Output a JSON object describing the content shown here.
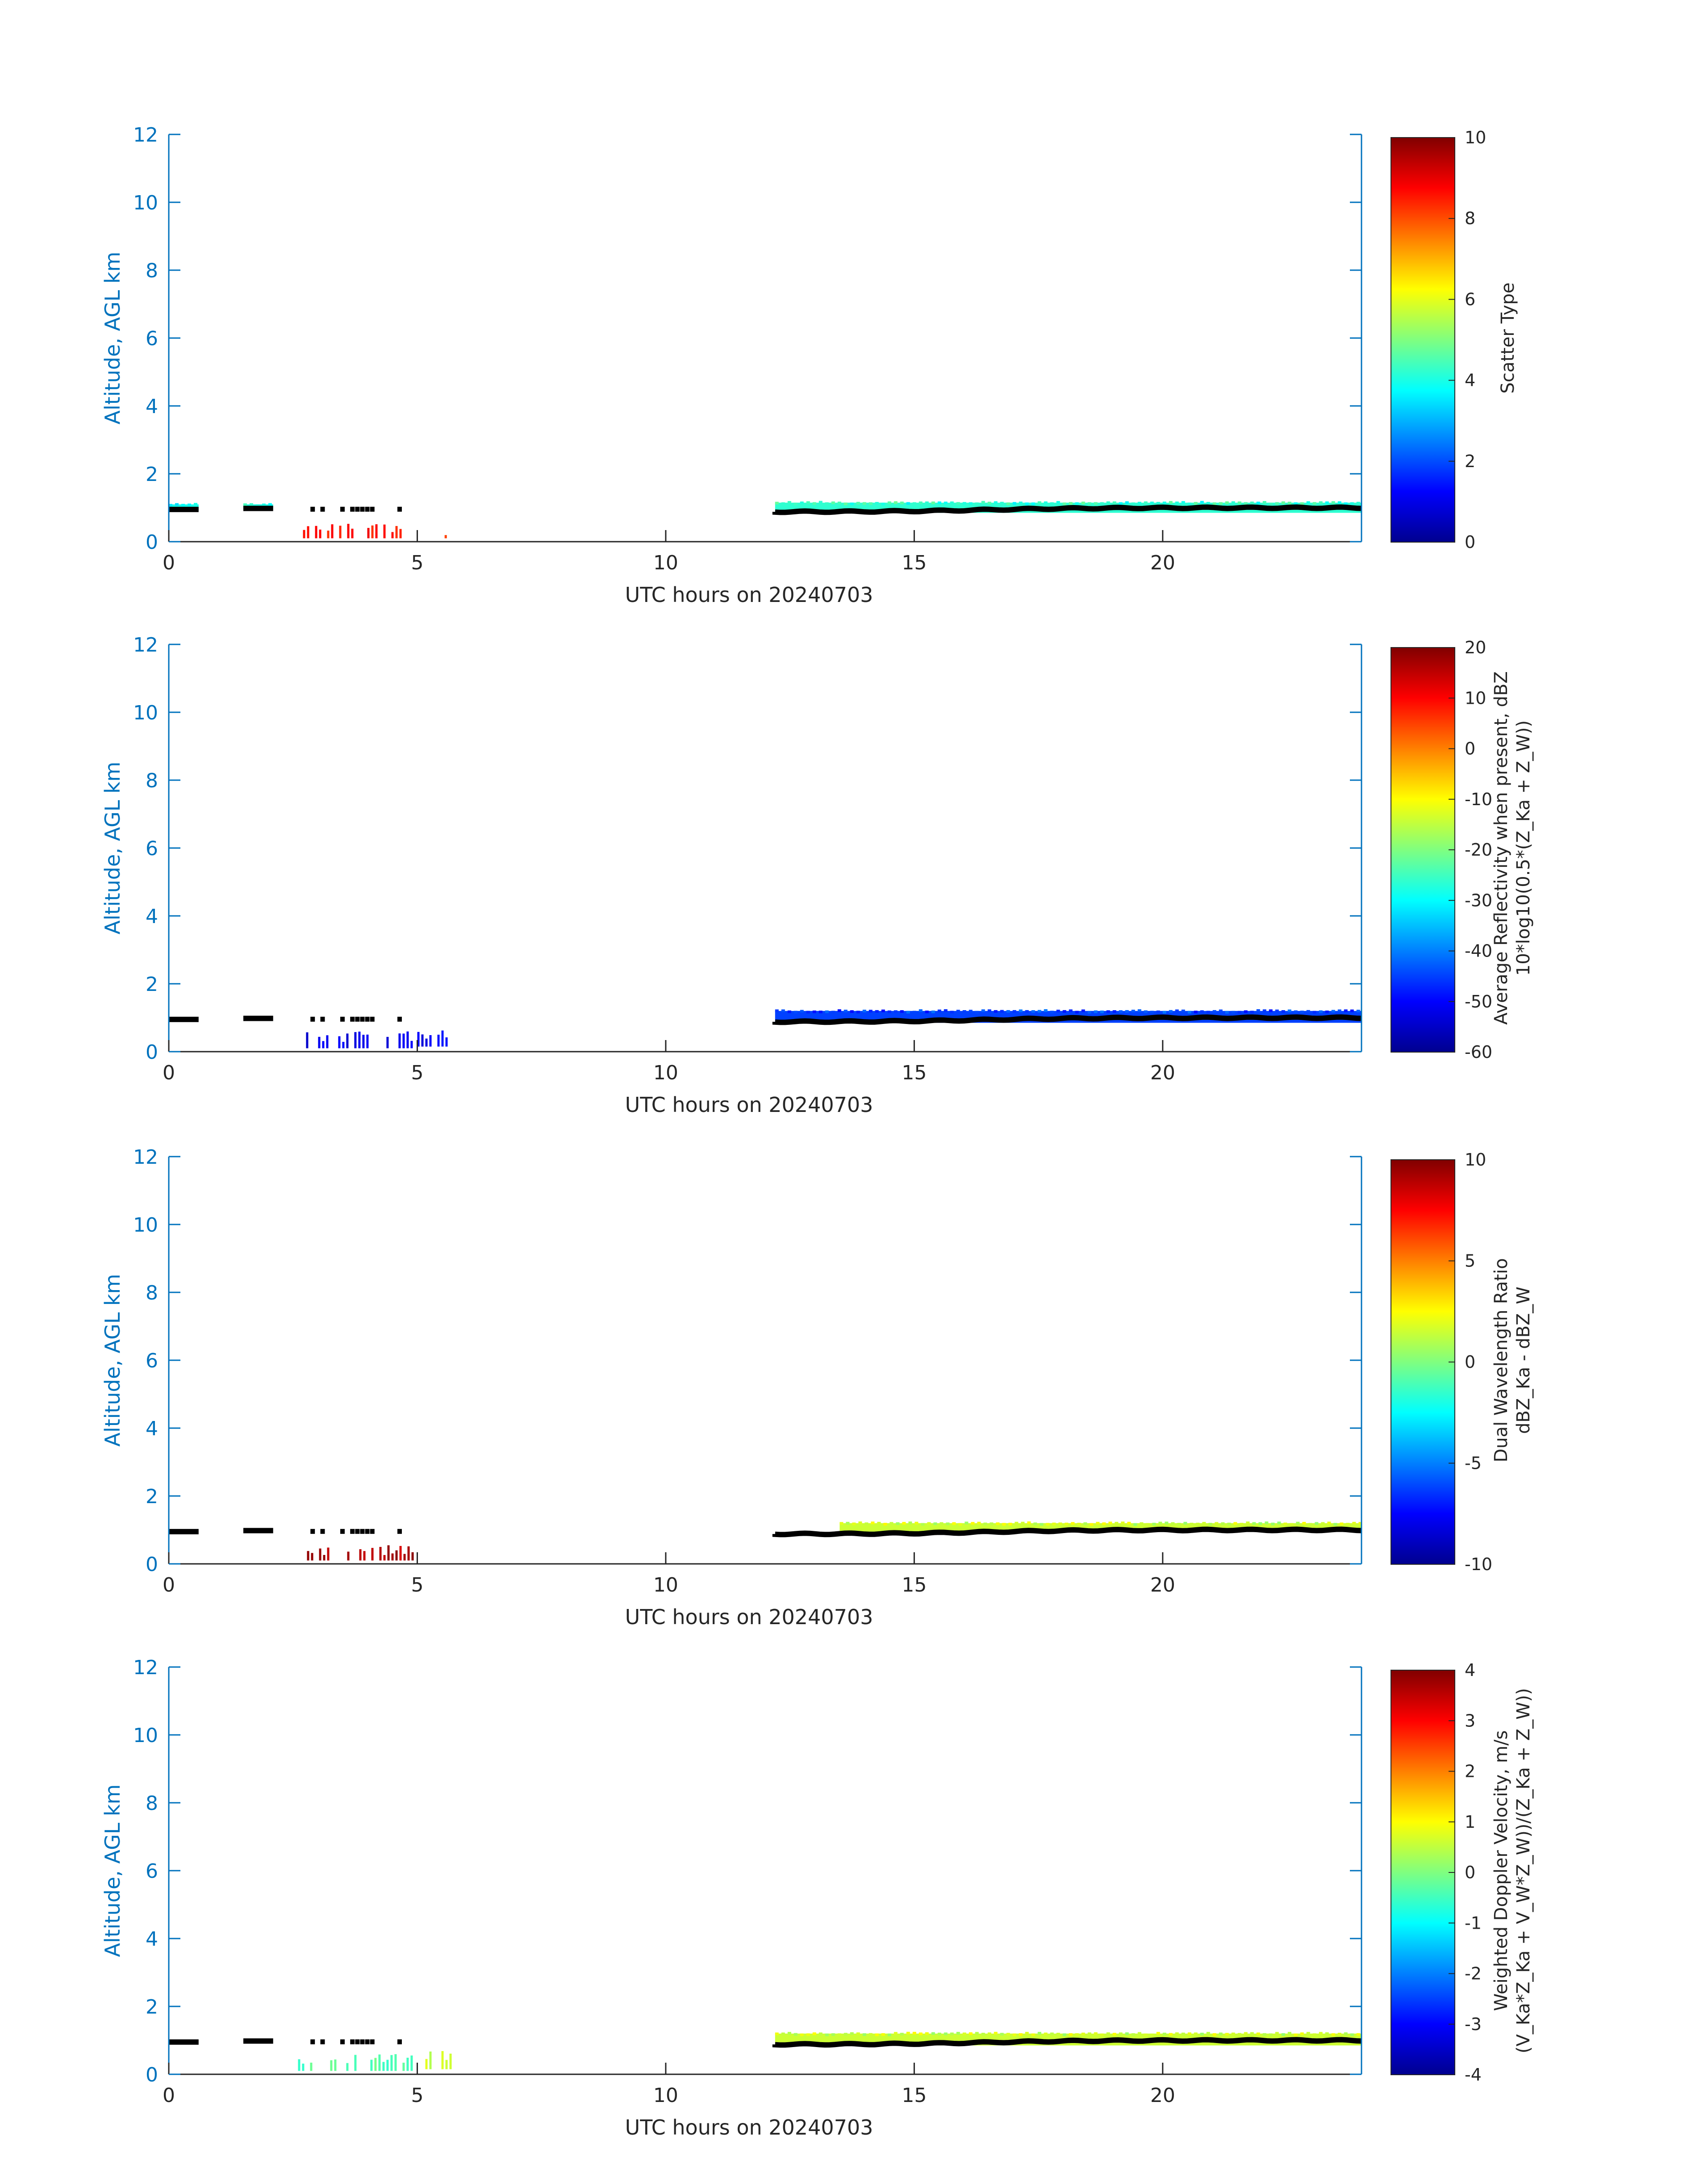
{
  "chart_data": [
    {
      "type": "heatmap",
      "xlabel": "UTC hours on 20240703",
      "ylabel": "Altitude, AGL km",
      "xlim": [
        0,
        24
      ],
      "ylim": [
        0,
        12
      ],
      "xticks": [
        "0",
        "5",
        "10",
        "15",
        "20"
      ],
      "yticks": [
        "0",
        "2",
        "4",
        "6",
        "8",
        "10",
        "12"
      ],
      "colorbar": {
        "label_lines": [
          "Scatter Type"
        ],
        "range": [
          0,
          10
        ],
        "ticks": [
          "0",
          "2",
          "4",
          "6",
          "8",
          "10"
        ]
      },
      "echoes": [
        {
          "x0": 2.7,
          "x1": 4.7,
          "y0": 0.1,
          "y1": 0.55,
          "value": 8.5
        },
        {
          "x0": 5.55,
          "x1": 5.6,
          "y0": 0.1,
          "y1": 0.25,
          "value": 8.5
        },
        {
          "x0": 0.0,
          "x1": 0.6,
          "y0": 0.9,
          "y1": 1.1,
          "value": 4.0
        },
        {
          "x0": 1.5,
          "x1": 2.1,
          "y0": 0.95,
          "y1": 1.1,
          "value": 4.0
        },
        {
          "x0": 12.2,
          "x1": 24.0,
          "y0": 0.85,
          "y1": 1.15,
          "value": 4.2
        }
      ]
    },
    {
      "type": "heatmap",
      "xlabel": "UTC hours on 20240703",
      "ylabel": "Altitude, AGL km",
      "xlim": [
        0,
        24
      ],
      "ylim": [
        0,
        12
      ],
      "xticks": [
        "0",
        "5",
        "10",
        "15",
        "20"
      ],
      "yticks": [
        "0",
        "2",
        "4",
        "6",
        "8",
        "10",
        "12"
      ],
      "colorbar": {
        "label_lines": [
          "Average Reflectivity when present, dBZ",
          "10*log10(0.5*(Z_Ka + Z_W))"
        ],
        "range": [
          -60,
          20
        ],
        "ticks": [
          "-60",
          "-50",
          "-40",
          "-30",
          "-20",
          "-10",
          "0",
          "10",
          "20"
        ]
      },
      "echoes": [
        {
          "x0": 2.6,
          "x1": 4.9,
          "y0": 0.1,
          "y1": 0.6,
          "value": -52
        },
        {
          "x0": 5.0,
          "x1": 5.8,
          "y0": 0.15,
          "y1": 0.7,
          "value": -50
        },
        {
          "x0": 12.2,
          "x1": 24.0,
          "y0": 0.85,
          "y1": 1.2,
          "value": -45
        }
      ]
    },
    {
      "type": "heatmap",
      "xlabel": "UTC hours on 20240703",
      "ylabel": "Altitude, AGL km",
      "xlim": [
        0,
        24
      ],
      "ylim": [
        0,
        12
      ],
      "xticks": [
        "0",
        "5",
        "10",
        "15",
        "20"
      ],
      "yticks": [
        "0",
        "2",
        "4",
        "6",
        "8",
        "10",
        "12"
      ],
      "colorbar": {
        "label_lines": [
          "Dual Wavelength Ratio",
          "dBZ_Ka - dBZ_W"
        ],
        "range": [
          -10,
          10
        ],
        "ticks": [
          "-10",
          "-5",
          "0",
          "5",
          "10"
        ]
      },
      "echoes": [
        {
          "x0": 2.7,
          "x1": 4.9,
          "y0": 0.1,
          "y1": 0.55,
          "value": 9.0
        },
        {
          "x0": 13.5,
          "x1": 24.0,
          "y0": 0.95,
          "y1": 1.2,
          "value": 1.5
        }
      ]
    },
    {
      "type": "heatmap",
      "xlabel": "UTC hours on 20240703",
      "ylabel": "Altitude, AGL km",
      "xlim": [
        0,
        24
      ],
      "ylim": [
        0,
        12
      ],
      "xticks": [
        "0",
        "5",
        "10",
        "15",
        "20"
      ],
      "yticks": [
        "0",
        "2",
        "4",
        "6",
        "8",
        "10",
        "12"
      ],
      "colorbar": {
        "label_lines": [
          "Weighted Doppler Velocity, m/s",
          "(V_Ka*Z_Ka + V_W*Z_W))/(Z_Ka + Z_W))"
        ],
        "range": [
          -4,
          4
        ],
        "ticks": [
          "-4",
          "-3",
          "-2",
          "-1",
          "0",
          "1",
          "2",
          "3",
          "4"
        ]
      },
      "echoes": [
        {
          "x0": 2.6,
          "x1": 4.9,
          "y0": 0.1,
          "y1": 0.6,
          "value": -0.3
        },
        {
          "x0": 5.0,
          "x1": 5.8,
          "y0": 0.15,
          "y1": 0.7,
          "value": 0.5
        },
        {
          "x0": 12.2,
          "x1": 24.0,
          "y0": 0.85,
          "y1": 1.2,
          "value": 0.6
        }
      ]
    }
  ]
}
